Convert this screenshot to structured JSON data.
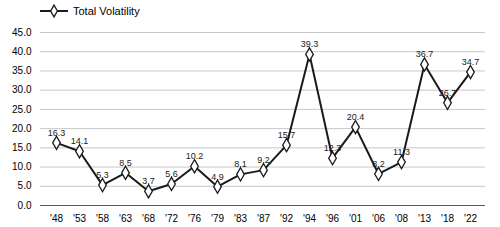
{
  "chart_data": {
    "type": "line",
    "categories": [
      "'48",
      "'53",
      "'58",
      "'63",
      "'68",
      "'72",
      "'76",
      "'79",
      "'83",
      "'87",
      "'92",
      "'94",
      "'96",
      "'01",
      "'06",
      "'08",
      "'13",
      "'18",
      "'22"
    ],
    "series": [
      {
        "name": "Total Volatility",
        "color": "#1a1a1a",
        "values": [
          16.3,
          14.1,
          5.3,
          8.5,
          3.7,
          5.6,
          10.2,
          4.9,
          8.1,
          9.2,
          15.7,
          39.3,
          12.3,
          20.4,
          8.2,
          11.3,
          36.7,
          26.7,
          34.7
        ]
      }
    ],
    "ylim": [
      0.0,
      45.0
    ],
    "yticks": [
      {
        "value": 0,
        "label": "0.0"
      },
      {
        "value": 5,
        "label": "5.0"
      },
      {
        "value": 10,
        "label": "10.0"
      },
      {
        "value": 15,
        "label": "15.0"
      },
      {
        "value": 20,
        "label": "20.0"
      },
      {
        "value": 25,
        "label": "25.0"
      },
      {
        "value": 30,
        "label": "30.0"
      },
      {
        "value": 35,
        "label": "35.0"
      },
      {
        "value": 40,
        "label": "40.0"
      },
      {
        "value": 45,
        "label": "45.0"
      }
    ],
    "grid": true,
    "legend": "upper left",
    "marker": "diamond",
    "data_labels": true
  }
}
